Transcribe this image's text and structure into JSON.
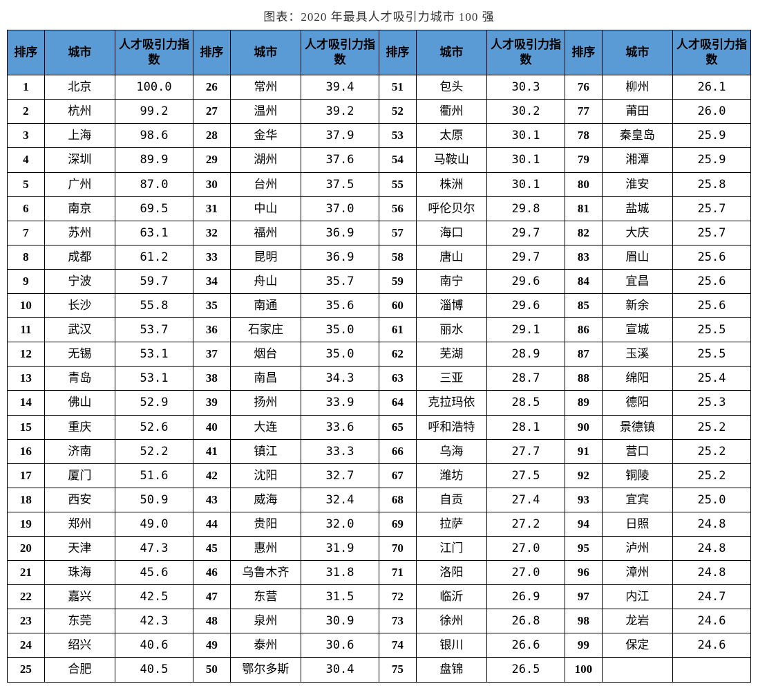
{
  "title": "图表：2020 年最具人才吸引力城市 100 强",
  "headers": {
    "rank": "排序",
    "city": "城市",
    "index": "人才吸引力指数"
  },
  "styling": {
    "header_bg": "#5b9bd5",
    "border_color": "#000000",
    "font_family": "SimSun",
    "title_fontsize": 17,
    "cell_fontsize": 17
  },
  "rows": [
    {
      "r1": "1",
      "c1": "北京",
      "i1": "100.0",
      "r2": "26",
      "c2": "常州",
      "i2": "39.4",
      "r3": "51",
      "c3": "包头",
      "i3": "30.3",
      "r4": "76",
      "c4": "柳州",
      "i4": "26.1"
    },
    {
      "r1": "2",
      "c1": "杭州",
      "i1": "99.2",
      "r2": "27",
      "c2": "温州",
      "i2": "39.2",
      "r3": "52",
      "c3": "衢州",
      "i3": "30.2",
      "r4": "77",
      "c4": "莆田",
      "i4": "26.0"
    },
    {
      "r1": "3",
      "c1": "上海",
      "i1": "98.6",
      "r2": "28",
      "c2": "金华",
      "i2": "37.9",
      "r3": "53",
      "c3": "太原",
      "i3": "30.1",
      "r4": "78",
      "c4": "秦皇岛",
      "i4": "25.9"
    },
    {
      "r1": "4",
      "c1": "深圳",
      "i1": "89.9",
      "r2": "29",
      "c2": "湖州",
      "i2": "37.6",
      "r3": "54",
      "c3": "马鞍山",
      "i3": "30.1",
      "r4": "79",
      "c4": "湘潭",
      "i4": "25.9"
    },
    {
      "r1": "5",
      "c1": "广州",
      "i1": "87.0",
      "r2": "30",
      "c2": "台州",
      "i2": "37.5",
      "r3": "55",
      "c3": "株洲",
      "i3": "30.1",
      "r4": "80",
      "c4": "淮安",
      "i4": "25.8"
    },
    {
      "r1": "6",
      "c1": "南京",
      "i1": "69.5",
      "r2": "31",
      "c2": "中山",
      "i2": "37.0",
      "r3": "56",
      "c3": "呼伦贝尔",
      "i3": "29.8",
      "r4": "81",
      "c4": "盐城",
      "i4": "25.7"
    },
    {
      "r1": "7",
      "c1": "苏州",
      "i1": "63.1",
      "r2": "32",
      "c2": "福州",
      "i2": "36.9",
      "r3": "57",
      "c3": "海口",
      "i3": "29.7",
      "r4": "82",
      "c4": "大庆",
      "i4": "25.7"
    },
    {
      "r1": "8",
      "c1": "成都",
      "i1": "61.2",
      "r2": "33",
      "c2": "昆明",
      "i2": "36.9",
      "r3": "58",
      "c3": "唐山",
      "i3": "29.7",
      "r4": "83",
      "c4": "眉山",
      "i4": "25.6"
    },
    {
      "r1": "9",
      "c1": "宁波",
      "i1": "59.7",
      "r2": "34",
      "c2": "舟山",
      "i2": "35.7",
      "r3": "59",
      "c3": "南宁",
      "i3": "29.6",
      "r4": "84",
      "c4": "宜昌",
      "i4": "25.6"
    },
    {
      "r1": "10",
      "c1": "长沙",
      "i1": "55.8",
      "r2": "35",
      "c2": "南通",
      "i2": "35.6",
      "r3": "60",
      "c3": "淄博",
      "i3": "29.6",
      "r4": "85",
      "c4": "新余",
      "i4": "25.6"
    },
    {
      "r1": "11",
      "c1": "武汉",
      "i1": "53.7",
      "r2": "36",
      "c2": "石家庄",
      "i2": "35.0",
      "r3": "61",
      "c3": "丽水",
      "i3": "29.1",
      "r4": "86",
      "c4": "宣城",
      "i4": "25.5"
    },
    {
      "r1": "12",
      "c1": "无锡",
      "i1": "53.1",
      "r2": "37",
      "c2": "烟台",
      "i2": "35.0",
      "r3": "62",
      "c3": "芜湖",
      "i3": "28.9",
      "r4": "87",
      "c4": "玉溪",
      "i4": "25.5"
    },
    {
      "r1": "13",
      "c1": "青岛",
      "i1": "53.1",
      "r2": "38",
      "c2": "南昌",
      "i2": "34.3",
      "r3": "63",
      "c3": "三亚",
      "i3": "28.7",
      "r4": "88",
      "c4": "绵阳",
      "i4": "25.4"
    },
    {
      "r1": "14",
      "c1": "佛山",
      "i1": "52.9",
      "r2": "39",
      "c2": "扬州",
      "i2": "33.9",
      "r3": "64",
      "c3": "克拉玛依",
      "i3": "28.5",
      "r4": "89",
      "c4": "德阳",
      "i4": "25.3"
    },
    {
      "r1": "15",
      "c1": "重庆",
      "i1": "52.6",
      "r2": "40",
      "c2": "大连",
      "i2": "33.6",
      "r3": "65",
      "c3": "呼和浩特",
      "i3": "28.1",
      "r4": "90",
      "c4": "景德镇",
      "i4": "25.2"
    },
    {
      "r1": "16",
      "c1": "济南",
      "i1": "52.2",
      "r2": "41",
      "c2": "镇江",
      "i2": "33.3",
      "r3": "66",
      "c3": "乌海",
      "i3": "27.7",
      "r4": "91",
      "c4": "营口",
      "i4": "25.2"
    },
    {
      "r1": "17",
      "c1": "厦门",
      "i1": "51.6",
      "r2": "42",
      "c2": "沈阳",
      "i2": "32.7",
      "r3": "67",
      "c3": "潍坊",
      "i3": "27.5",
      "r4": "92",
      "c4": "铜陵",
      "i4": "25.2"
    },
    {
      "r1": "18",
      "c1": "西安",
      "i1": "50.9",
      "r2": "43",
      "c2": "威海",
      "i2": "32.4",
      "r3": "68",
      "c3": "自贡",
      "i3": "27.4",
      "r4": "93",
      "c4": "宜宾",
      "i4": "25.0"
    },
    {
      "r1": "19",
      "c1": "郑州",
      "i1": "49.0",
      "r2": "44",
      "c2": "贵阳",
      "i2": "32.0",
      "r3": "69",
      "c3": "拉萨",
      "i3": "27.2",
      "r4": "94",
      "c4": "日照",
      "i4": "24.8"
    },
    {
      "r1": "20",
      "c1": "天津",
      "i1": "47.3",
      "r2": "45",
      "c2": "惠州",
      "i2": "31.9",
      "r3": "70",
      "c3": "江门",
      "i3": "27.0",
      "r4": "95",
      "c4": "泸州",
      "i4": "24.8"
    },
    {
      "r1": "21",
      "c1": "珠海",
      "i1": "45.6",
      "r2": "46",
      "c2": "乌鲁木齐",
      "i2": "31.8",
      "r3": "71",
      "c3": "洛阳",
      "i3": "27.0",
      "r4": "96",
      "c4": "漳州",
      "i4": "24.8"
    },
    {
      "r1": "22",
      "c1": "嘉兴",
      "i1": "42.5",
      "r2": "47",
      "c2": "东营",
      "i2": "31.5",
      "r3": "72",
      "c3": "临沂",
      "i3": "26.9",
      "r4": "97",
      "c4": "内江",
      "i4": "24.7"
    },
    {
      "r1": "23",
      "c1": "东莞",
      "i1": "42.3",
      "r2": "48",
      "c2": "泉州",
      "i2": "30.9",
      "r3": "73",
      "c3": "徐州",
      "i3": "26.8",
      "r4": "98",
      "c4": "龙岩",
      "i4": "24.6"
    },
    {
      "r1": "24",
      "c1": "绍兴",
      "i1": "40.6",
      "r2": "49",
      "c2": "泰州",
      "i2": "30.6",
      "r3": "74",
      "c3": "银川",
      "i3": "26.6",
      "r4": "99",
      "c4": "保定",
      "i4": "24.6"
    },
    {
      "r1": "25",
      "c1": "合肥",
      "i1": "40.5",
      "r2": "50",
      "c2": "鄂尔多斯",
      "i2": "30.4",
      "r3": "75",
      "c3": "盘锦",
      "i3": "26.5",
      "r4": "100",
      "c4": "",
      "i4": ""
    }
  ]
}
